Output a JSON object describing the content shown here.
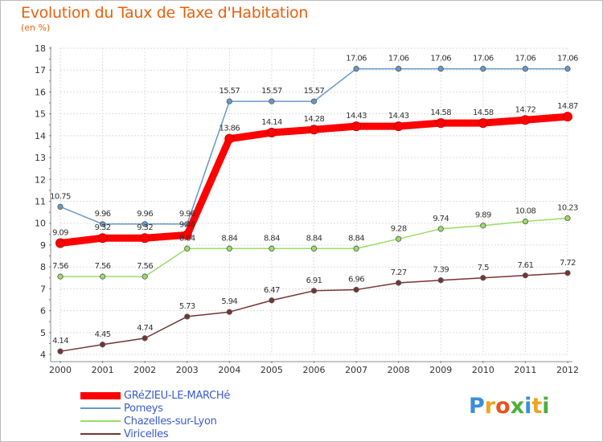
{
  "chart_data": {
    "type": "line",
    "title": "Evolution du Taux de Taxe d'Habitation",
    "subtitle": "(en %)",
    "categories": [
      "2000",
      "2001",
      "2002",
      "2003",
      "2004",
      "2005",
      "2006",
      "2007",
      "2008",
      "2009",
      "2010",
      "2011",
      "2012"
    ],
    "ylim": [
      4,
      18
    ],
    "yticks": [
      "4",
      "5",
      "6",
      "7",
      "8",
      "9",
      "10",
      "11",
      "12",
      "13",
      "14",
      "15",
      "16",
      "17",
      "18"
    ],
    "grid": true,
    "legend_position": "bottom-left",
    "series": [
      {
        "name": "GRéZIEU-LE-MARCHé",
        "color": "#ff0000",
        "values": [
          9.09,
          9.32,
          9.32,
          9.46,
          13.86,
          14.14,
          14.28,
          14.43,
          14.43,
          14.58,
          14.58,
          14.72,
          14.87
        ],
        "labels": [
          "9.09",
          "9.32",
          "9.32",
          "9.46",
          "13.86",
          "14.14",
          "14.28",
          "14.43",
          "14.43",
          "14.58",
          "14.58",
          "14.72",
          "14.87"
        ]
      },
      {
        "name": "Pomeys",
        "color": "#6699cc",
        "values": [
          10.75,
          9.96,
          9.96,
          9.96,
          15.57,
          15.57,
          15.57,
          17.06,
          17.06,
          17.06,
          17.06,
          17.06,
          17.06
        ],
        "labels": [
          "10.75",
          "9.96",
          "9.96",
          "9.96",
          "15.57",
          "15.57",
          "15.57",
          "17.06",
          "17.06",
          "17.06",
          "17.06",
          "17.06",
          "17.06"
        ]
      },
      {
        "name": "Chazelles-sur-Lyon",
        "color": "#99dd66",
        "values": [
          7.56,
          7.56,
          7.56,
          8.84,
          8.84,
          8.84,
          8.84,
          8.84,
          9.28,
          9.74,
          9.89,
          10.08,
          10.23
        ],
        "labels": [
          "7.56",
          "7.56",
          "7.56",
          "8.84",
          "8.84",
          "8.84",
          "8.84",
          "8.84",
          "9.28",
          "9.74",
          "9.89",
          "10.08",
          "10.23"
        ]
      },
      {
        "name": "Viricelles",
        "color": "#773333",
        "values": [
          4.14,
          4.45,
          4.74,
          5.73,
          5.94,
          6.47,
          6.91,
          6.96,
          7.27,
          7.39,
          7.5,
          7.61,
          7.72
        ],
        "labels": [
          "4.14",
          "4.45",
          "4.74",
          "5.73",
          "5.94",
          "6.47",
          "6.91",
          "6.96",
          "7.27",
          "7.39",
          "7.5",
          "7.61",
          "7.72"
        ]
      }
    ]
  },
  "logo": {
    "letters": [
      "P",
      "r",
      "o",
      "x",
      "i",
      "t",
      "i"
    ],
    "colors": [
      "#3a8fd8",
      "#f2a21e",
      "#e8531e",
      "#4caf3c",
      "#3a8fd8",
      "#f2a21e",
      "#4caf3c"
    ]
  }
}
